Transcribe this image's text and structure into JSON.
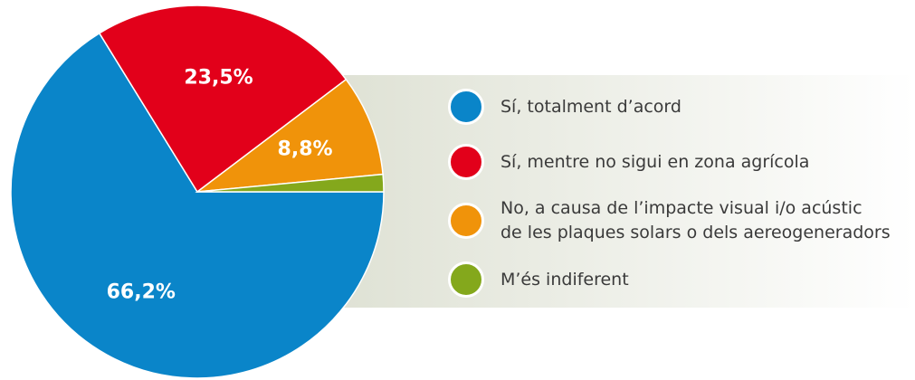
{
  "chart_data": {
    "type": "pie",
    "series": [
      {
        "name": "Sí, totalment d’acord",
        "color": "#0a85c9",
        "values": [
          66.2
        ],
        "value_labels": [
          "66,2%"
        ]
      },
      {
        "name": "Sí, mentre no sigui en zona agrícola",
        "color": "#e2001a",
        "values": [
          23.5
        ],
        "value_labels": [
          "23,5%"
        ]
      },
      {
        "name": "No, a causa de l’impacte visual i/o acústic\nde les plaques solars o dels aereogeneradors",
        "color": "#f0930a",
        "values": [
          8.8
        ],
        "value_labels": [
          "8,8%"
        ]
      },
      {
        "name": "M’és indiferent",
        "color": "#84a81c",
        "values": [
          1.5
        ]
      }
    ]
  }
}
